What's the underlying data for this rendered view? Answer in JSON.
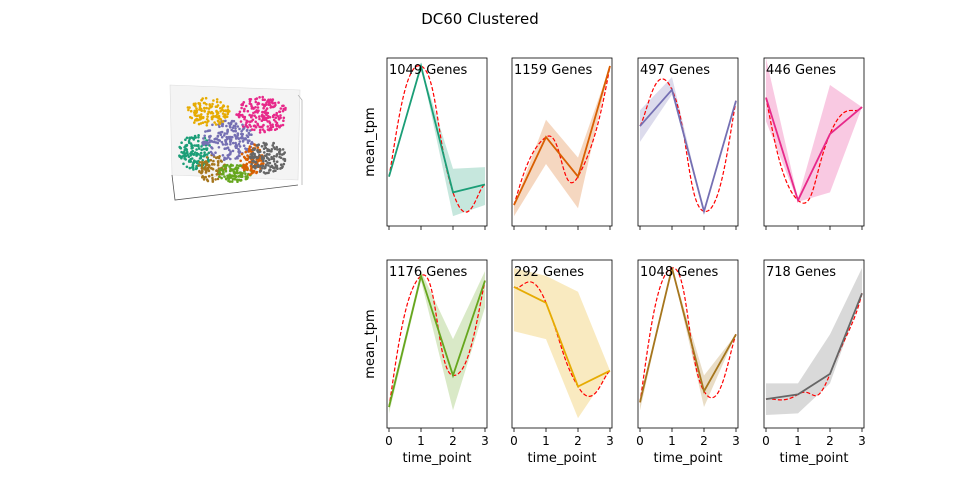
{
  "title": "DC60 Clustered",
  "chart_data": [
    {
      "type": "line",
      "subplot": "row1-col1",
      "annotation": "1049 Genes",
      "color": "#1b9e77",
      "x": [
        0,
        1,
        2,
        3
      ],
      "values": [
        0.3,
        1.0,
        0.2,
        0.25
      ],
      "band_lower": [
        0.3,
        1.0,
        0.05,
        0.12
      ],
      "band_upper": [
        0.3,
        1.0,
        0.35,
        0.36
      ],
      "ylabel": "mean_tpm",
      "xlabel": "",
      "fit_color": "#ff0000"
    },
    {
      "type": "line",
      "subplot": "row1-col2",
      "annotation": "1159 Genes",
      "color": "#d95f02",
      "x": [
        0,
        1,
        2,
        3
      ],
      "values": [
        0.12,
        0.55,
        0.3,
        1.0
      ],
      "band_lower": [
        0.05,
        0.38,
        0.1,
        1.0
      ],
      "band_upper": [
        0.12,
        0.66,
        0.42,
        1.0
      ],
      "ylabel": "",
      "xlabel": "",
      "fit_color": "#ff0000"
    },
    {
      "type": "line",
      "subplot": "row1-col3",
      "annotation": "497 Genes",
      "color": "#7570b3",
      "x": [
        0,
        1,
        2,
        3
      ],
      "values": [
        0.62,
        0.85,
        0.08,
        0.78
      ],
      "band_lower": [
        0.52,
        0.82,
        0.08,
        0.78
      ],
      "band_upper": [
        0.72,
        0.93,
        0.08,
        0.78
      ],
      "ylabel": "",
      "xlabel": "",
      "fit_color": "#ff0000"
    },
    {
      "type": "line",
      "subplot": "row1-col4",
      "annotation": "446 Genes",
      "color": "#e7298a",
      "x": [
        0,
        1,
        2,
        3
      ],
      "values": [
        0.8,
        0.15,
        0.57,
        0.74
      ],
      "band_lower": [
        0.65,
        0.14,
        0.2,
        0.74
      ],
      "band_upper": [
        1.05,
        0.16,
        0.88,
        0.74
      ],
      "ylabel": "",
      "xlabel": "",
      "fit_color": "#ff0000"
    },
    {
      "type": "line",
      "subplot": "row2-col1",
      "annotation": "1176 Genes",
      "color": "#66a61e",
      "x": [
        0,
        1,
        2,
        3
      ],
      "values": [
        0.12,
        0.95,
        0.32,
        0.92
      ],
      "band_lower": [
        0.08,
        0.92,
        0.1,
        0.75
      ],
      "band_upper": [
        0.15,
        0.98,
        0.55,
        0.98
      ],
      "ylabel": "mean_tpm",
      "xlabel": "time_point",
      "xticks": [
        "0",
        "1",
        "2",
        "3"
      ],
      "fit_color": "#ff0000"
    },
    {
      "type": "line",
      "subplot": "row2-col2",
      "annotation": "292 Genes",
      "color": "#e6ab02",
      "x": [
        0,
        1,
        2,
        3
      ],
      "values": [
        0.88,
        0.78,
        0.25,
        0.35
      ],
      "band_lower": [
        0.6,
        0.55,
        0.05,
        0.35
      ],
      "band_upper": [
        1.0,
        0.95,
        0.85,
        0.35
      ],
      "ylabel": "",
      "xlabel": "time_point",
      "xticks": [
        "0",
        "1",
        "2",
        "3"
      ],
      "fit_color": "#ff0000"
    },
    {
      "type": "line",
      "subplot": "row2-col3",
      "annotation": "1048 Genes",
      "color": "#a6761d",
      "x": [
        0,
        1,
        2,
        3
      ],
      "values": [
        0.15,
        1.0,
        0.22,
        0.58
      ],
      "band_lower": [
        0.1,
        1.0,
        0.12,
        0.58
      ],
      "band_upper": [
        0.18,
        1.0,
        0.32,
        0.58
      ],
      "ylabel": "",
      "xlabel": "time_point",
      "xticks": [
        "0",
        "1",
        "2",
        "3"
      ],
      "fit_color": "#ff0000"
    },
    {
      "type": "line",
      "subplot": "row2-col4",
      "annotation": "718 Genes",
      "color": "#666666",
      "x": [
        0,
        1,
        2,
        3
      ],
      "values": [
        0.17,
        0.2,
        0.33,
        0.84
      ],
      "band_lower": [
        0.07,
        0.08,
        0.27,
        0.84
      ],
      "band_upper": [
        0.27,
        0.27,
        0.58,
        1.0
      ],
      "ylabel": "",
      "xlabel": "time_point",
      "xticks": [
        "0",
        "1",
        "2",
        "3"
      ],
      "fit_color": "#ff0000"
    }
  ],
  "scatter3d": {
    "type": "scatter",
    "colors": [
      "#1b9e77",
      "#a6761d",
      "#66a61e",
      "#7570b3",
      "#e6ab02",
      "#e7298a",
      "#d95f02",
      "#666666"
    ]
  }
}
